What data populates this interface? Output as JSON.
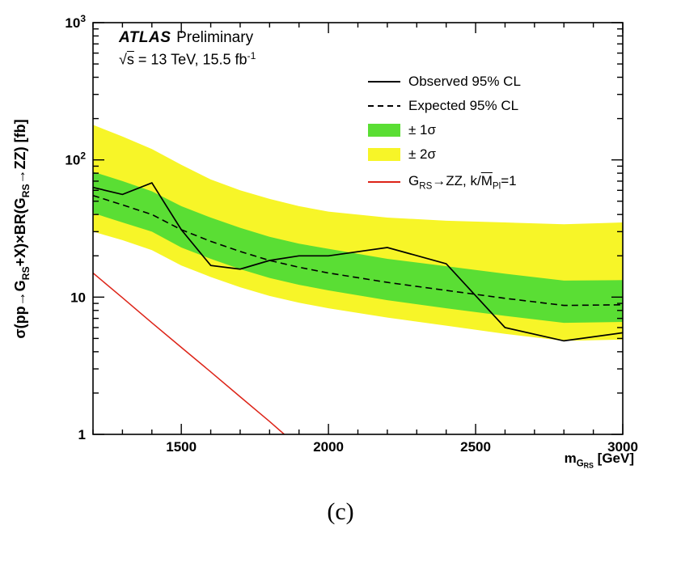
{
  "figure": {
    "atlas": "ATLAS",
    "status": "Preliminary",
    "energy_parts": [
      {
        "t": "√"
      },
      {
        "t": "s",
        "ov": true
      },
      {
        "t": " = 13 TeV, 15.5 fb"
      },
      {
        "t": "-1",
        "sup": true
      }
    ],
    "caption": "(c)"
  },
  "chart_data": {
    "type": "line",
    "title": "",
    "x_axis": {
      "label_parts": [
        {
          "t": "m"
        },
        {
          "t": "G",
          "sub": 1
        },
        {
          "t": "RS",
          "sub": 2
        },
        {
          "t": " [GeV]"
        }
      ],
      "min": 1200,
      "max": 3000,
      "major_ticks": [
        1500,
        2000,
        2500,
        3000
      ],
      "minor_step": 100
    },
    "y_axis": {
      "label_parts": [
        {
          "t": "σ(pp→G"
        },
        {
          "t": "RS",
          "sub": 1
        },
        {
          "t": "+X)×BR(G"
        },
        {
          "t": "RS",
          "sub": 1
        },
        {
          "t": "→ZZ) [fb]"
        }
      ],
      "scale": "log",
      "min": 1,
      "max": 1000,
      "major_ticks": [
        1,
        10,
        100,
        1000
      ]
    },
    "masses": [
      1200,
      1300,
      1400,
      1500,
      1600,
      1700,
      1800,
      1900,
      2000,
      2200,
      2400,
      2600,
      2800,
      3000
    ],
    "series": [
      {
        "name": "Observed 95% CL",
        "role": "observed",
        "style": "solid",
        "values": [
          63,
          56,
          68,
          31,
          17,
          16,
          18.5,
          20,
          20,
          23,
          17.5,
          6,
          4.8,
          5.5
        ]
      },
      {
        "name": "Expected 95% CL",
        "role": "expected",
        "style": "dashed",
        "values": [
          55,
          47,
          40,
          31,
          25.5,
          21.5,
          18.5,
          16.5,
          15,
          12.8,
          11.2,
          9.8,
          8.7,
          8.8
        ]
      },
      {
        "name": "± 1σ",
        "role": "band1",
        "type": "band",
        "up": [
          82,
          70,
          59,
          46,
          38,
          32,
          27.5,
          24.5,
          22.5,
          19,
          16.8,
          14.8,
          13.2,
          13.3
        ],
        "down": [
          41,
          35,
          30,
          23,
          19,
          16,
          13.8,
          12.3,
          11.2,
          9.5,
          8.3,
          7.3,
          6.5,
          6.6
        ]
      },
      {
        "name": "± 2σ",
        "role": "band2",
        "type": "band",
        "up": [
          180,
          148,
          120,
          92,
          72,
          60,
          52,
          46,
          42,
          38,
          36,
          35,
          34,
          35
        ],
        "down": [
          30,
          26,
          22,
          17,
          14,
          11.8,
          10.2,
          9.1,
          8.3,
          7.1,
          6.2,
          5.4,
          4.8,
          4.9
        ]
      },
      {
        "name": "G_RS→ZZ, k/M_Pl=1",
        "role": "theory",
        "style": "solid",
        "x": [
          1200,
          1300,
          1400,
          1500,
          1600,
          1700,
          1800,
          1850
        ],
        "values": [
          15,
          9.9,
          6.5,
          4.3,
          2.85,
          1.88,
          1.24,
          1.0
        ]
      }
    ],
    "colors": {
      "observed": "#000000",
      "expected": "#000000",
      "band1": "#5ade34",
      "band2": "#f7f528",
      "theory": "#dd2418",
      "frame": "#000000"
    },
    "legend": [
      {
        "swatch": "line-solid",
        "label": "Observed 95% CL"
      },
      {
        "swatch": "line-dashed",
        "label": "Expected 95% CL"
      },
      {
        "swatch": "box-green",
        "label": "± 1σ"
      },
      {
        "swatch": "box-yellow",
        "label": "± 2σ"
      },
      {
        "swatch": "line-red",
        "label_parts": [
          {
            "t": "G"
          },
          {
            "t": "RS",
            "sub": 1
          },
          {
            "t": "→ZZ, k/"
          },
          {
            "t": "M",
            "ov": true
          },
          {
            "t": "Pl",
            "sub": 1
          },
          {
            "t": "=1"
          }
        ]
      }
    ]
  }
}
